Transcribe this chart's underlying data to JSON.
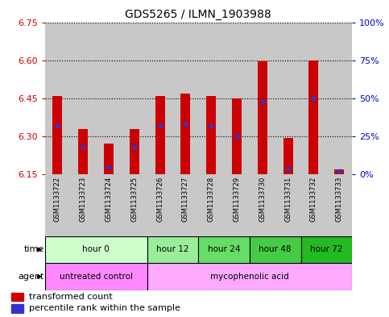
{
  "title": "GDS5265 / ILMN_1903988",
  "samples": [
    "GSM1133722",
    "GSM1133723",
    "GSM1133724",
    "GSM1133725",
    "GSM1133726",
    "GSM1133727",
    "GSM1133728",
    "GSM1133729",
    "GSM1133730",
    "GSM1133731",
    "GSM1133732",
    "GSM1133733"
  ],
  "transformed_count": [
    6.46,
    6.33,
    6.27,
    6.33,
    6.46,
    6.47,
    6.46,
    6.45,
    6.595,
    6.295,
    6.6,
    6.17
  ],
  "percentile_rank": [
    32,
    18,
    5,
    18,
    32,
    33,
    32,
    25,
    48,
    4,
    50,
    2
  ],
  "ylim_left": [
    6.15,
    6.75
  ],
  "ylim_right": [
    0,
    100
  ],
  "yticks_left": [
    6.15,
    6.3,
    6.45,
    6.6,
    6.75
  ],
  "yticks_right": [
    0,
    25,
    50,
    75,
    100
  ],
  "bar_color": "#cc0000",
  "dot_color": "#3333cc",
  "baseline": 6.15,
  "time_groups": [
    {
      "label": "hour 0",
      "start": 0,
      "end": 3,
      "color": "#ccffcc"
    },
    {
      "label": "hour 12",
      "start": 4,
      "end": 5,
      "color": "#99ee99"
    },
    {
      "label": "hour 24",
      "start": 6,
      "end": 7,
      "color": "#66dd66"
    },
    {
      "label": "hour 48",
      "start": 8,
      "end": 9,
      "color": "#44cc44"
    },
    {
      "label": "hour 72",
      "start": 10,
      "end": 11,
      "color": "#22bb22"
    }
  ],
  "agent_groups": [
    {
      "label": "untreated control",
      "start": 0,
      "end": 3,
      "color": "#ff88ff"
    },
    {
      "label": "mycophenolic acid",
      "start": 4,
      "end": 11,
      "color": "#ffaaff"
    }
  ],
  "legend_bar_label": "transformed count",
  "legend_dot_label": "percentile rank within the sample",
  "tick_color_left": "#cc0000",
  "tick_color_right": "#0000cc",
  "bg_sample": "#c8c8c8",
  "bg_plot": "#ffffff",
  "bar_width": 0.38
}
